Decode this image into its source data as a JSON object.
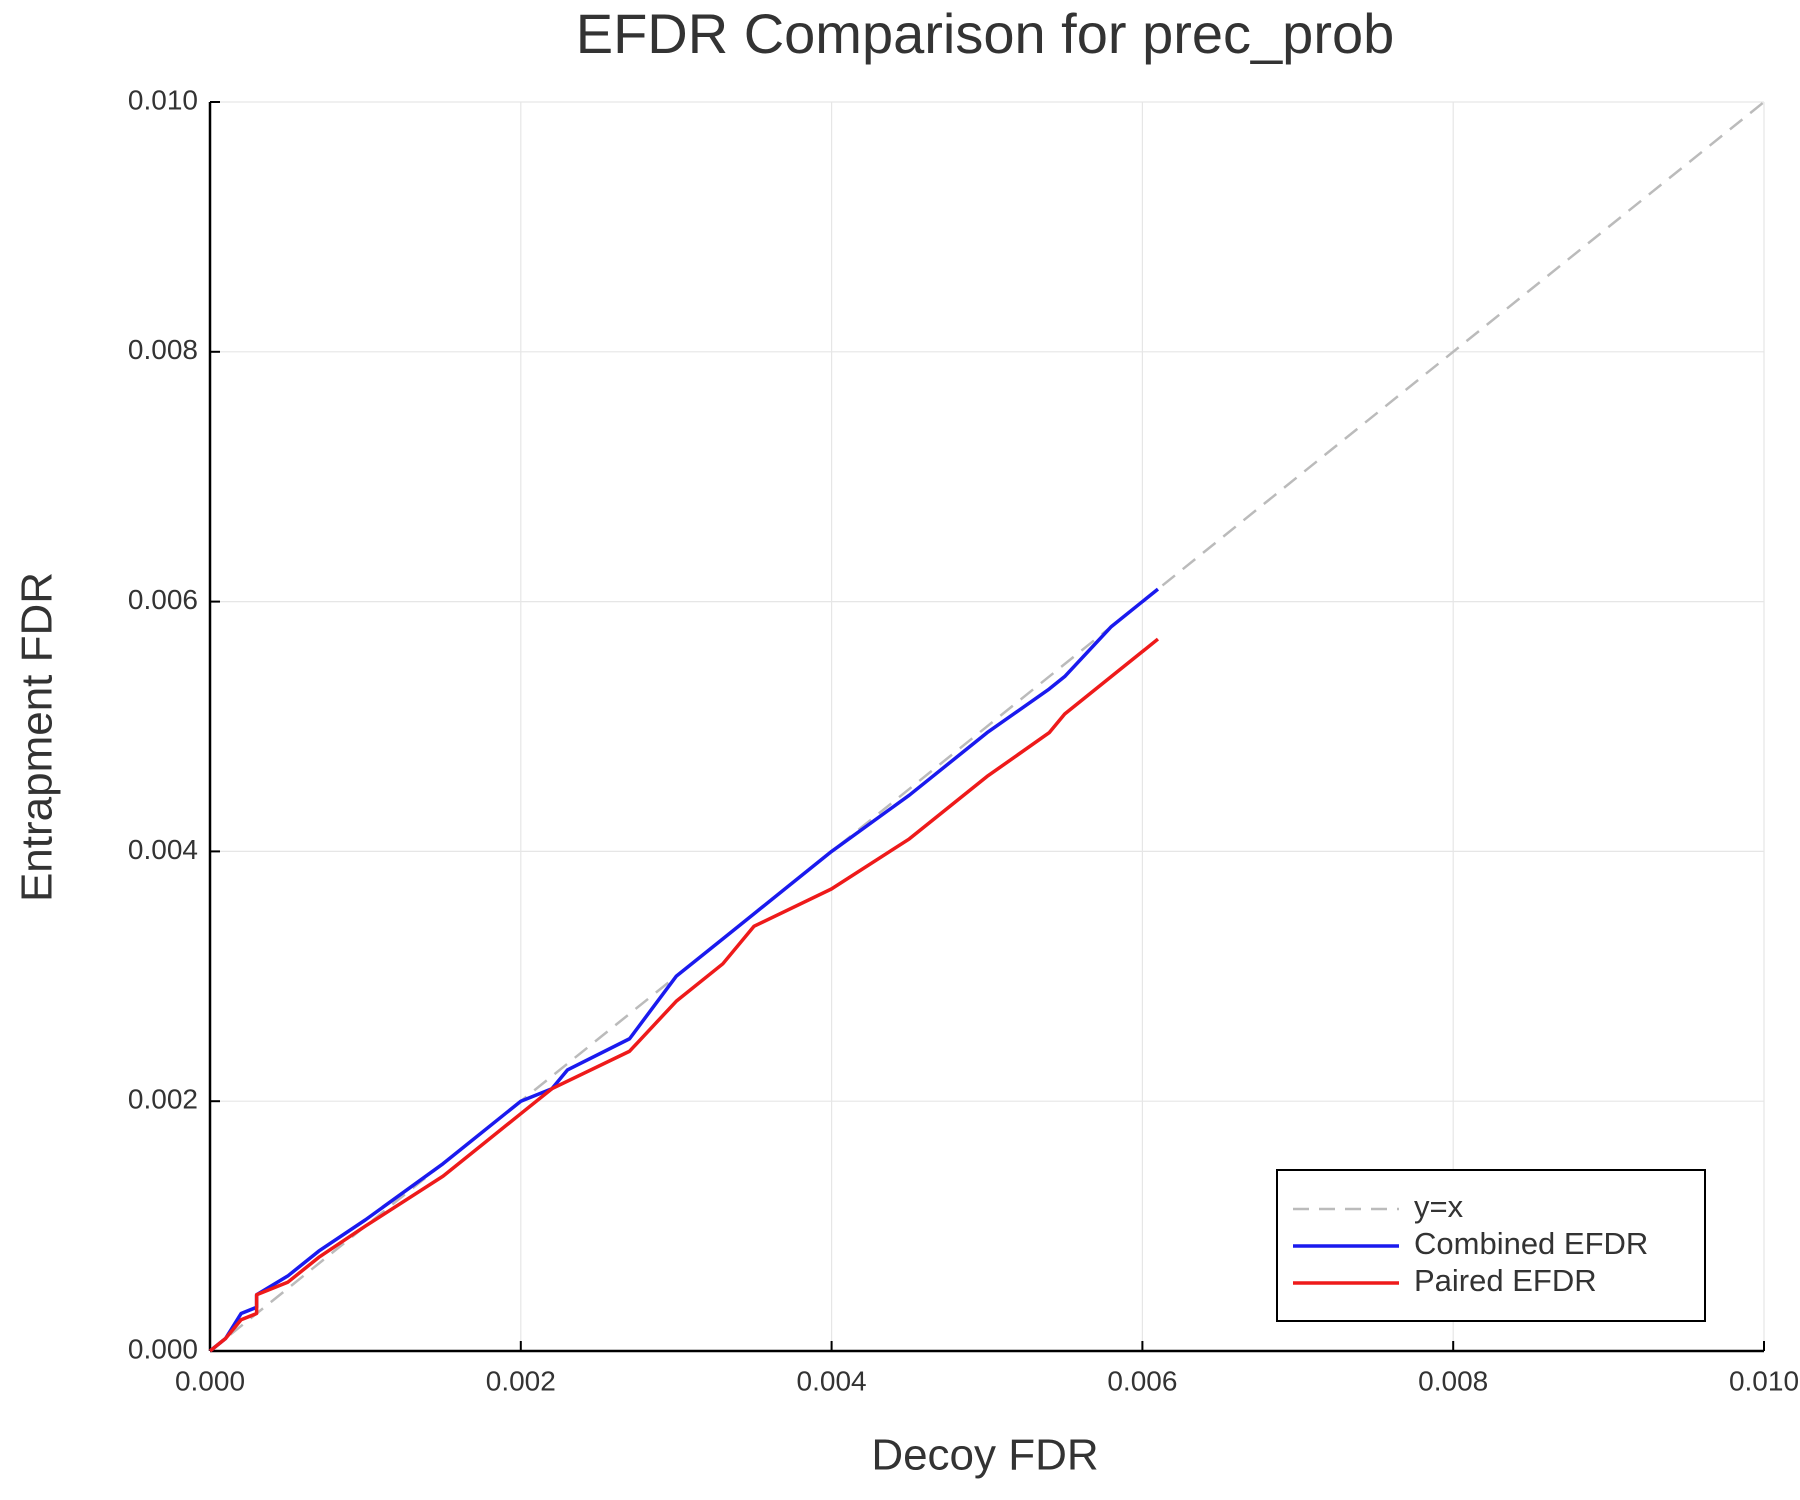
{
  "chart_data": {
    "type": "line",
    "title": "EFDR Comparison for prec_prob",
    "x_label": "Decoy FDR",
    "y_label": "Entrapment FDR",
    "xlim": [
      0,
      0.01
    ],
    "ylim": [
      0,
      0.01
    ],
    "xticks": [
      {
        "value": 0,
        "label": "0.000"
      },
      {
        "value": 0.002,
        "label": "0.002"
      },
      {
        "value": 0.004,
        "label": "0.004"
      },
      {
        "value": 0.006,
        "label": "0.006"
      },
      {
        "value": 0.008,
        "label": "0.008"
      },
      {
        "value": 0.01,
        "label": "0.010"
      }
    ],
    "yticks": [
      {
        "value": 0,
        "label": "0.000"
      },
      {
        "value": 0.002,
        "label": "0.002"
      },
      {
        "value": 0.004,
        "label": "0.004"
      },
      {
        "value": 0.006,
        "label": "0.006"
      },
      {
        "value": 0.008,
        "label": "0.008"
      },
      {
        "value": 0.01,
        "label": "0.010"
      }
    ],
    "grid": true,
    "legend": "lower right",
    "series": [
      {
        "name": "y=x",
        "color": "#bbbbbb",
        "linestyle": "dashed",
        "x": [
          0,
          0.01
        ],
        "values": [
          0,
          0.01
        ]
      },
      {
        "name": "Combined EFDR",
        "color": "#1a1aee",
        "linestyle": "solid",
        "x": [
          0,
          0.0001,
          0.0002,
          0.0003,
          0.0003,
          0.0005,
          0.0007,
          0.001,
          0.0015,
          0.002,
          0.0022,
          0.0023,
          0.0027,
          0.003,
          0.0033,
          0.0034,
          0.0035,
          0.004,
          0.0045,
          0.005,
          0.0054,
          0.0055,
          0.0058,
          0.0061
        ],
        "values": [
          0,
          0.0001,
          0.0003,
          0.00035,
          0.00045,
          0.0006,
          0.0008,
          0.00105,
          0.0015,
          0.002,
          0.0021,
          0.00225,
          0.0025,
          0.003,
          0.0033,
          0.0034,
          0.0035,
          0.004,
          0.00445,
          0.00495,
          0.0053,
          0.0054,
          0.0058,
          0.0061
        ]
      },
      {
        "name": "Paired EFDR",
        "color": "#ee1a1a",
        "linestyle": "solid",
        "x": [
          0,
          0.0001,
          0.0002,
          0.0003,
          0.0003,
          0.0005,
          0.0007,
          0.001,
          0.0015,
          0.002,
          0.0022,
          0.0027,
          0.003,
          0.0033,
          0.0035,
          0.004,
          0.0045,
          0.005,
          0.0054,
          0.0055,
          0.0058,
          0.0061
        ],
        "values": [
          0,
          0.0001,
          0.00025,
          0.0003,
          0.00045,
          0.00055,
          0.00075,
          0.001,
          0.0014,
          0.0019,
          0.0021,
          0.0024,
          0.0028,
          0.0031,
          0.0034,
          0.0037,
          0.0041,
          0.0046,
          0.00495,
          0.0051,
          0.0054,
          0.0057
        ]
      }
    ]
  }
}
